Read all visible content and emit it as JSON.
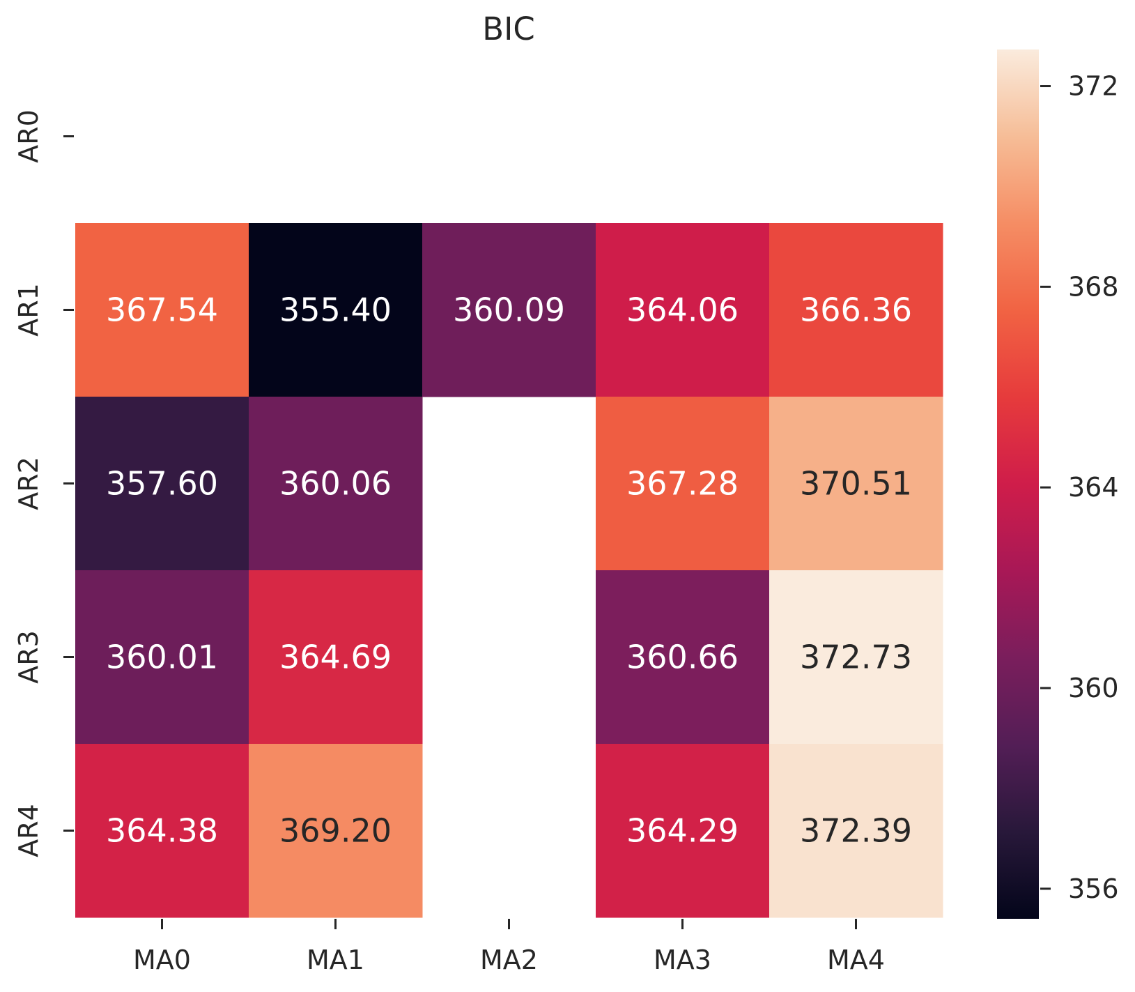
{
  "chart_data": {
    "type": "heatmap",
    "title": "BIC",
    "xlabel": "",
    "ylabel": "",
    "x_categories": [
      "MA0",
      "MA1",
      "MA2",
      "MA3",
      "MA4"
    ],
    "y_categories": [
      "AR0",
      "AR1",
      "AR2",
      "AR3",
      "AR4"
    ],
    "values": [
      [
        null,
        null,
        null,
        null,
        null
      ],
      [
        367.54,
        355.4,
        360.09,
        364.06,
        366.36
      ],
      [
        357.6,
        360.06,
        null,
        367.28,
        370.51
      ],
      [
        360.01,
        364.69,
        null,
        360.66,
        372.73
      ],
      [
        364.38,
        369.2,
        null,
        364.29,
        372.39
      ]
    ],
    "value_format": "2 decimals",
    "missing_cells": "blank",
    "colormap": "rocket",
    "colorbar": {
      "vmin": 355.4,
      "vmax": 372.73,
      "ticks": [
        356,
        360,
        364,
        368,
        372
      ],
      "tick_labels": [
        "356",
        "360",
        "364",
        "368",
        "372"
      ],
      "position": "right"
    },
    "grid": false
  },
  "colors": {
    "text_dark": "#262626",
    "text_light": "#ffffff",
    "background": "#ffffff"
  }
}
